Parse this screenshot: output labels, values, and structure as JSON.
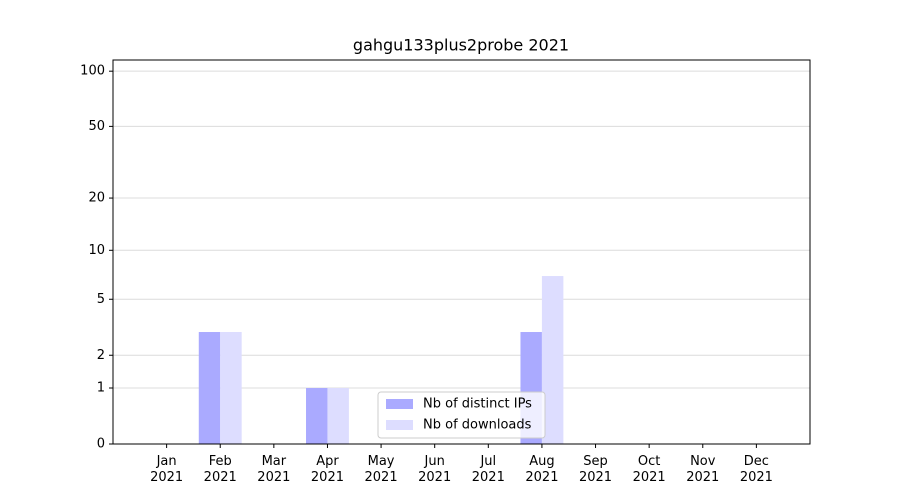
{
  "chart_data": {
    "type": "bar",
    "title": "gahgu133plus2probe 2021",
    "categories": [
      "Jan 2021",
      "Feb 2021",
      "Mar 2021",
      "Apr 2021",
      "May 2021",
      "Jun 2021",
      "Jul 2021",
      "Aug 2021",
      "Sep 2021",
      "Oct 2021",
      "Nov 2021",
      "Dec 2021"
    ],
    "series": [
      {
        "name": "Nb of distinct IPs",
        "color": "#aaaaff",
        "values": [
          0,
          3,
          0,
          1,
          0,
          0,
          0,
          3,
          0,
          0,
          0,
          0
        ]
      },
      {
        "name": "Nb of downloads",
        "color": "#ddddff",
        "values": [
          0,
          3,
          0,
          1,
          0,
          0,
          0,
          7,
          0,
          0,
          0,
          0
        ]
      }
    ],
    "yscale": "log1p",
    "ylim": [
      0,
      115
    ],
    "yticks": [
      0,
      1,
      2,
      5,
      10,
      20,
      50,
      100
    ],
    "grid": true,
    "legend": "bottom"
  }
}
